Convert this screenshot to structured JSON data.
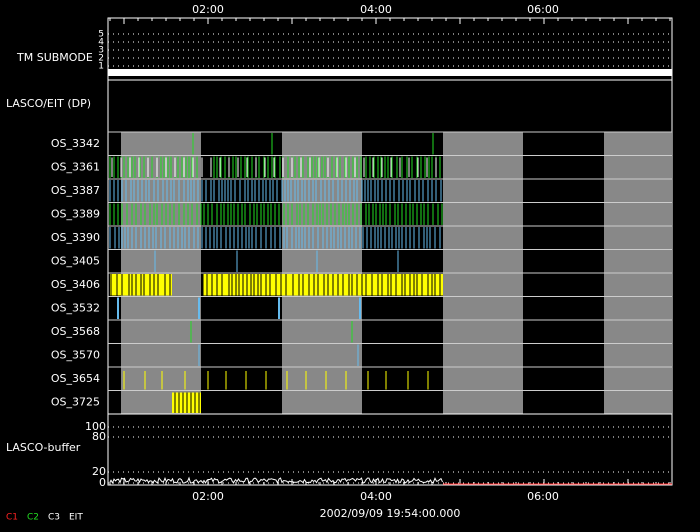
{
  "axis": {
    "top_ticks": [
      "02:00",
      "04:00",
      "06:00"
    ],
    "bottom_ticks": [
      "02:00",
      "04:00",
      "06:00"
    ]
  },
  "tm_submode": {
    "label": "TM SUBMODE",
    "levels": [
      "5",
      "4",
      "3",
      "2",
      "1"
    ]
  },
  "dp_label": "LASCO/EIT (DP)",
  "rows": [
    {
      "label": "OS_3342",
      "color": "#22dd22"
    },
    {
      "label": "OS_3361",
      "color": "#22dd22"
    },
    {
      "label": "OS_3387",
      "color": "#66bbee"
    },
    {
      "label": "OS_3389",
      "color": "#22dd22"
    },
    {
      "label": "OS_3390",
      "color": "#66bbee"
    },
    {
      "label": "OS_3405",
      "color": "#66bbee"
    },
    {
      "label": "OS_3406",
      "color": "#ffff00"
    },
    {
      "label": "OS_3532",
      "color": "#66bbee"
    },
    {
      "label": "OS_3568",
      "color": "#22dd22"
    },
    {
      "label": "OS_3570",
      "color": "#66bbee"
    },
    {
      "label": "OS_3654",
      "color": "#ffff00"
    },
    {
      "label": "OS_3725",
      "color": "#ffff00"
    }
  ],
  "buffer": {
    "label": "LASCO-buffer",
    "levels": [
      "100",
      "80",
      "20",
      "0"
    ]
  },
  "timestamp": "2002/09/09 19:54:00.000",
  "legend": [
    {
      "label": "C1",
      "color": "#ff2222"
    },
    {
      "label": "C2",
      "color": "#22dd22"
    },
    {
      "label": "C3",
      "color": "#ffffff"
    },
    {
      "label": "EIT",
      "color": "#ffffff"
    }
  ]
}
